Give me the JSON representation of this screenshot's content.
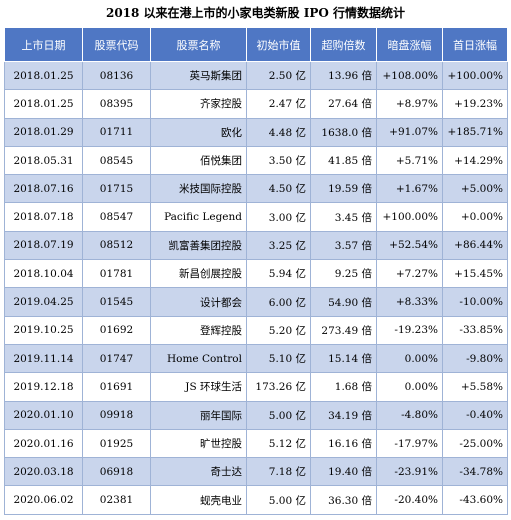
{
  "title": "2018 以来在港上市的小家电类新股 IPO 行情数据统计",
  "columns": [
    "上市日期",
    "股票代码",
    "股票名称",
    "初始市值",
    "超购倍数",
    "暗盘涨幅",
    "首日涨幅"
  ],
  "rows": [
    [
      "2018.01.25",
      "08136",
      "英马斯集团",
      "2.50 亿",
      "13.96 倍",
      "+108.00%",
      "+100.00%"
    ],
    [
      "2018.01.25",
      "08395",
      "齐家控股",
      "2.47 亿",
      "27.64 倍",
      "+8.97%",
      "+19.23%"
    ],
    [
      "2018.01.29",
      "01711",
      "欧化",
      "4.48 亿",
      "1638.0 倍",
      "+91.07%",
      "+185.71%"
    ],
    [
      "2018.05.31",
      "08545",
      "佰悦集团",
      "3.50 亿",
      "41.85 倍",
      "+5.71%",
      "+14.29%"
    ],
    [
      "2018.07.16",
      "01715",
      "米技国际控股",
      "4.50 亿",
      "19.59 倍",
      "+1.67%",
      "+5.00%"
    ],
    [
      "2018.07.18",
      "08547",
      "Pacific Legend",
      "3.00 亿",
      "3.45 倍",
      "+100.00%",
      "+0.00%"
    ],
    [
      "2018.07.19",
      "08512",
      "凯富善集团控股",
      "3.25 亿",
      "3.57 倍",
      "+52.54%",
      "+86.44%"
    ],
    [
      "2018.10.04",
      "01781",
      "新昌创展控股",
      "5.94 亿",
      "9.25 倍",
      "+7.27%",
      "+15.45%"
    ],
    [
      "2019.04.25",
      "01545",
      "设计都会",
      "6.00 亿",
      "54.90 倍",
      "+8.33%",
      "-10.00%"
    ],
    [
      "2019.10.25",
      "01692",
      "登辉控股",
      "5.20 亿",
      "273.49 倍",
      "-19.23%",
      "-33.85%"
    ],
    [
      "2019.11.14",
      "01747",
      "Home Control",
      "5.10 亿",
      "15.14 倍",
      "0.00%",
      "-9.80%"
    ],
    [
      "2019.12.18",
      "01691",
      "JS 环球生活",
      "173.26 亿",
      "1.68 倍",
      "0.00%",
      "+5.58%"
    ],
    [
      "2020.01.10",
      "09918",
      "丽年国际",
      "5.00 亿",
      "34.19 倍",
      "-4.80%",
      "-0.40%"
    ],
    [
      "2020.01.16",
      "01925",
      "旷世控股",
      "5.12 亿",
      "16.16 倍",
      "-17.97%",
      "-25.00%"
    ],
    [
      "2020.03.18",
      "06918",
      "奇士达",
      "7.18 亿",
      "19.40 倍",
      "-23.91%",
      "-34.78%"
    ],
    [
      "2020.06.02",
      "02381",
      "蚬壳电业",
      "5.00 亿",
      "36.30 倍",
      "-20.40%",
      "-43.60%"
    ]
  ],
  "colors": {
    "header_bg": "#4f77c4",
    "row_alt_bg": "#c9d5ec",
    "border": "#9fb3d6"
  }
}
